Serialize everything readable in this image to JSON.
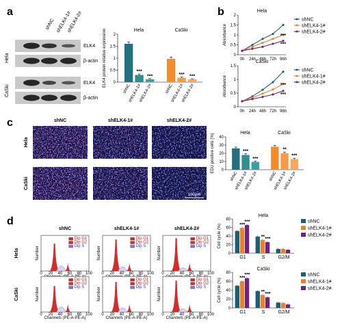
{
  "colors": {
    "shNC": "#1c5f74",
    "sh1": "#f07f2a",
    "sh2": "#6b2481",
    "hela_c": "#3ab0a3",
    "sh1_c": "#ef8b2c",
    "sh2_c": "#7b2c8e",
    "blot_bg": "#c9c9c9",
    "band": "#262626",
    "hist_red": "#d42b2b",
    "hist_blue": "#7c7ccf"
  },
  "panels": {
    "a": "a",
    "b": "b",
    "c": "c",
    "d": "d"
  },
  "panel_a": {
    "lanes": [
      "shNC",
      "shELK4-1#",
      "shELK4-2#"
    ],
    "rows": [
      {
        "cell": "Hela",
        "bands": [
          "ELK4",
          "β-actin"
        ]
      },
      {
        "cell": "CaSki",
        "bands": [
          "ELK4",
          "β-actin"
        ]
      }
    ]
  },
  "chart_data": [
    {
      "id": "a_bar",
      "type": "bar",
      "ylabel": "ELK4 protein relative expression",
      "ylim": [
        0,
        2
      ],
      "yticks": [
        0,
        0.5,
        1.0,
        1.5,
        2.0
      ],
      "groups": [
        {
          "name": "Hela",
          "categories": [
            "shNC",
            "shELK4-1#",
            "shELK4-2#"
          ],
          "values": [
            1.6,
            0.3,
            0.12
          ],
          "errors": [
            0.08,
            0.04,
            0.03
          ],
          "sig": [
            "",
            "***",
            "***"
          ]
        },
        {
          "name": "CaSki",
          "categories": [
            "shNC",
            "shELK4-1#",
            "shELK4-2#"
          ],
          "values": [
            0.97,
            0.18,
            0.12
          ],
          "errors": [
            0.08,
            0.03,
            0.02
          ],
          "sig": [
            "",
            "***",
            "***"
          ]
        }
      ]
    },
    {
      "id": "b_hela",
      "type": "line",
      "title": "Hela",
      "ylabel": "Absorbance",
      "ylim": [
        0,
        2
      ],
      "yticks": [
        0,
        0.5,
        1.0,
        1.5,
        2.0
      ],
      "x": [
        "0h",
        "24h",
        "48h",
        "72h",
        "96h"
      ],
      "series": [
        {
          "name": "shNC",
          "values": [
            0.2,
            0.5,
            0.8,
            1.05,
            1.5
          ]
        },
        {
          "name": "shELK4-1#",
          "values": [
            0.2,
            0.4,
            0.6,
            0.8,
            1.0
          ]
        },
        {
          "name": "shELK4-2#",
          "values": [
            0.2,
            0.3,
            0.4,
            0.55,
            0.7
          ]
        }
      ],
      "sig": [
        "***",
        "***"
      ]
    },
    {
      "id": "b_caski",
      "type": "line",
      "title": "CaSki",
      "ylabel": "Absorbance",
      "ylim": [
        0,
        1.5
      ],
      "yticks": [
        0,
        0.5,
        1.0,
        1.5
      ],
      "x": [
        "0h",
        "24h",
        "48h",
        "72h",
        "96h"
      ],
      "series": [
        {
          "name": "shNC",
          "values": [
            0.2,
            0.38,
            0.62,
            0.9,
            1.28
          ]
        },
        {
          "name": "shELK4-1#",
          "values": [
            0.2,
            0.33,
            0.48,
            0.63,
            0.83
          ]
        },
        {
          "name": "shELK4-2#",
          "values": [
            0.2,
            0.28,
            0.36,
            0.45,
            0.58
          ]
        }
      ],
      "sig": [
        "***",
        "***"
      ]
    },
    {
      "id": "c_bar",
      "type": "bar",
      "ylabel": "EDU positive cells (%)",
      "ylim": [
        0,
        40
      ],
      "yticks": [
        0,
        10,
        20,
        30,
        40
      ],
      "groups": [
        {
          "name": "Hela",
          "categories": [
            "shNC",
            "shELK4-1#",
            "shELK4-2#"
          ],
          "values": [
            26,
            18,
            9.5
          ],
          "errors": [
            1.5,
            1.5,
            1.0
          ],
          "sig": [
            "",
            "***",
            "***"
          ]
        },
        {
          "name": "CaSki",
          "categories": [
            "shNC",
            "shELK4-1#",
            "shELK4-2#"
          ],
          "values": [
            28,
            20,
            13
          ],
          "errors": [
            1.5,
            1.5,
            1.0
          ],
          "sig": [
            "",
            "**",
            "***"
          ]
        }
      ]
    },
    {
      "id": "d_hela",
      "type": "bar",
      "title": "Hela",
      "ylabel": "Cell cycle (%)",
      "ylim": [
        0,
        80
      ],
      "yticks": [
        0,
        20,
        40,
        60,
        80
      ],
      "categories": [
        "G1",
        "S",
        "G2/M"
      ],
      "series": [
        {
          "name": "shNC",
          "values": [
            52,
            39,
            10
          ]
        },
        {
          "name": "shELK4-1#",
          "values": [
            59,
            31,
            10
          ]
        },
        {
          "name": "shELK4-2#",
          "values": [
            66,
            26,
            8
          ]
        }
      ],
      "sig": [
        [
          "",
          "***",
          "***"
        ],
        [
          "",
          "**",
          "***"
        ],
        [
          "",
          "",
          ""
        ]
      ]
    },
    {
      "id": "d_caski",
      "type": "bar",
      "title": "CaSki",
      "ylabel": "Cell cycle (%)",
      "ylim": [
        0,
        80
      ],
      "yticks": [
        0,
        20,
        40,
        60,
        80
      ],
      "categories": [
        "G1",
        "S",
        "G2/M"
      ],
      "series": [
        {
          "name": "shNC",
          "values": [
            50,
            38,
            12
          ]
        },
        {
          "name": "shELK4-1#",
          "values": [
            60,
            29,
            11
          ]
        },
        {
          "name": "shELK4-2#",
          "values": [
            67,
            24,
            8
          ]
        }
      ],
      "sig": [
        [
          "",
          "***",
          "***"
        ],
        [
          "",
          "**",
          "***"
        ],
        [
          "",
          "",
          ""
        ]
      ]
    }
  ],
  "legend": [
    "shNC",
    "shELK4-1#",
    "shELK4-2#"
  ],
  "panel_c": {
    "columns": [
      "shNC",
      "shELK4-1#",
      "shELK4-2#"
    ],
    "rows": [
      "Hela",
      "CaSki"
    ],
    "scale": "100µm"
  },
  "panel_d": {
    "columns": [
      "shNC",
      "shELK4-1#",
      "shELK4-2#"
    ],
    "rows": [
      "Hela",
      "CaSki"
    ],
    "legend": [
      "Dip G1",
      "Dip G2",
      "Dip S"
    ],
    "xlabel": "Channels (PE-A-PE-A)",
    "ylabel": "Number",
    "xticks": [
      "0",
      "20",
      "40",
      "60",
      "80",
      "100"
    ]
  }
}
